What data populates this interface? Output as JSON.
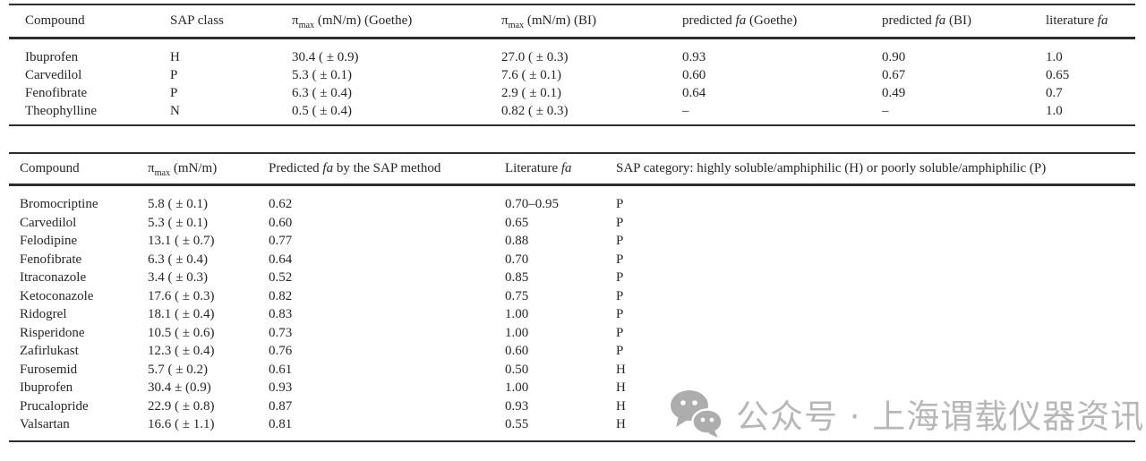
{
  "table1": {
    "headers": [
      "Compound",
      "SAP class",
      "π~max~ (mN/m) (Goethe)",
      "π~max~ (mN/m) (BI)",
      "predicted *fa* (Goethe)",
      "predicted *fa* (BI)",
      "literature *fa*"
    ],
    "rows": [
      [
        "Ibuprofen",
        "H",
        "30.4 ( ± 0.9)",
        "27.0 ( ± 0.3)",
        "0.93",
        "0.90",
        "1.0"
      ],
      [
        "Carvedilol",
        "P",
        "5.3 ( ± 0.1)",
        "7.6 ( ± 0.1)",
        "0.60",
        "0.67",
        "0.65"
      ],
      [
        "Fenofibrate",
        "P",
        "6.3 ( ± 0.4)",
        "2.9 ( ± 0.1)",
        "0.64",
        "0.49",
        "0.7"
      ],
      [
        "Theophylline",
        "N",
        "0.5 ( ± 0.4)",
        "0.82 ( ± 0.3)",
        "–",
        "–",
        "1.0"
      ]
    ]
  },
  "table2": {
    "headers": [
      "Compound",
      "π~max~ (mN/m)",
      "Predicted *fa* by the SAP method",
      "Literature *fa*",
      "SAP category: highly soluble/amphiphilic (H) or poorly soluble/amphiphilic (P)"
    ],
    "rows": [
      [
        "Bromocriptine",
        "5.8 ( ± 0.1)",
        "0.62",
        "0.70–0.95",
        "P"
      ],
      [
        "Carvedilol",
        "5.3 ( ± 0.1)",
        "0.60",
        "0.65",
        "P"
      ],
      [
        "Felodipine",
        "13.1 ( ± 0.7)",
        "0.77",
        "0.88",
        "P"
      ],
      [
        "Fenofibrate",
        "6.3 ( ± 0.4)",
        "0.64",
        "0.70",
        "P"
      ],
      [
        "Itraconazole",
        "3.4 ( ± 0.3)",
        "0.52",
        "0.85",
        "P"
      ],
      [
        "Ketoconazole",
        "17.6 ( ± 0.3)",
        "0.82",
        "0.75",
        "P"
      ],
      [
        "Ridogrel",
        "18.1 ( ± 0.4)",
        "0.83",
        "1.00",
        "P"
      ],
      [
        "Risperidone",
        "10.5 ( ± 0.6)",
        "0.73",
        "1.00",
        "P"
      ],
      [
        "Zafirlukast",
        "12.3 ( ± 0.4)",
        "0.76",
        "0.60",
        "P"
      ],
      [
        "Furosemid",
        "5.7 ( ± 0.2)",
        "0.61",
        "0.50",
        "H"
      ],
      [
        "Ibuprofen",
        "30.4 ± (0.9)",
        "0.93",
        "1.00",
        "H"
      ],
      [
        "Prucalopride",
        "22.9 ( ± 0.8)",
        "0.87",
        "0.93",
        "H"
      ],
      [
        "Valsartan",
        "16.6 ( ± 1.1)",
        "0.81",
        "0.55",
        "H"
      ]
    ]
  },
  "watermark": {
    "text": "公众号 · 上海谓载仪器资讯",
    "icon": "wechat-icon",
    "color": "#b7b7b7"
  }
}
